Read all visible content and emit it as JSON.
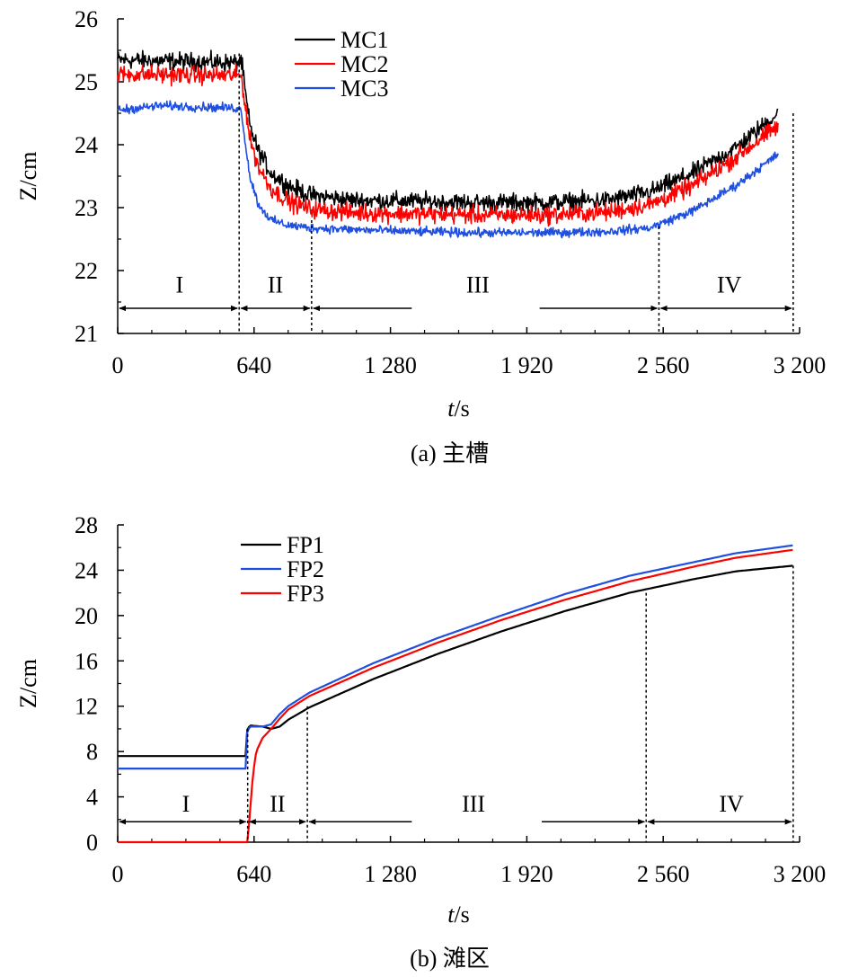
{
  "chart_data": [
    {
      "type": "line",
      "caption": "(a) 主槽",
      "xlabel_italic": "t",
      "xlabel_unit": "/s",
      "ylabel": "Z/cm",
      "xlim": [
        0,
        3200
      ],
      "ylim": [
        21,
        26
      ],
      "x_ticks": [
        0,
        640,
        1280,
        1920,
        2560,
        3200
      ],
      "x_tick_labels": [
        "0",
        "640",
        "1 280",
        "1 920",
        "2 560",
        "3 200"
      ],
      "y_ticks": [
        21,
        22,
        23,
        24,
        25,
        26
      ],
      "y_tick_labels": [
        "21",
        "22",
        "23",
        "24",
        "25",
        "26"
      ],
      "legend_position": "top-center",
      "series": [
        {
          "name": "MC1",
          "color": "#000000",
          "noise": 0.14,
          "points": [
            [
              0,
              25.35
            ],
            [
              560,
              25.3
            ],
            [
              580,
              25.35
            ],
            [
              600,
              24.8
            ],
            [
              620,
              24.3
            ],
            [
              660,
              23.9
            ],
            [
              720,
              23.55
            ],
            [
              800,
              23.35
            ],
            [
              900,
              23.2
            ],
            [
              1100,
              23.12
            ],
            [
              1400,
              23.1
            ],
            [
              1700,
              23.08
            ],
            [
              2000,
              23.08
            ],
            [
              2300,
              23.12
            ],
            [
              2500,
              23.25
            ],
            [
              2700,
              23.55
            ],
            [
              2900,
              23.95
            ],
            [
              3100,
              24.5
            ]
          ]
        },
        {
          "name": "MC2",
          "color": "#ff0000",
          "noise": 0.14,
          "points": [
            [
              0,
              25.12
            ],
            [
              560,
              25.1
            ],
            [
              580,
              25.1
            ],
            [
              600,
              24.6
            ],
            [
              620,
              24.1
            ],
            [
              660,
              23.65
            ],
            [
              720,
              23.3
            ],
            [
              800,
              23.1
            ],
            [
              900,
              22.98
            ],
            [
              1100,
              22.92
            ],
            [
              1400,
              22.9
            ],
            [
              1700,
              22.88
            ],
            [
              2000,
              22.88
            ],
            [
              2300,
              22.93
            ],
            [
              2500,
              23.05
            ],
            [
              2700,
              23.35
            ],
            [
              2900,
              23.8
            ],
            [
              3100,
              24.3
            ]
          ]
        },
        {
          "name": "MC3",
          "color": "#1f4fe0",
          "noise": 0.07,
          "points": [
            [
              0,
              24.55
            ],
            [
              200,
              24.62
            ],
            [
              560,
              24.58
            ],
            [
              580,
              24.55
            ],
            [
              600,
              24.0
            ],
            [
              620,
              23.5
            ],
            [
              660,
              23.05
            ],
            [
              720,
              22.8
            ],
            [
              800,
              22.72
            ],
            [
              900,
              22.68
            ],
            [
              1100,
              22.65
            ],
            [
              1400,
              22.62
            ],
            [
              1700,
              22.6
            ],
            [
              2000,
              22.6
            ],
            [
              2300,
              22.62
            ],
            [
              2500,
              22.68
            ],
            [
              2700,
              22.95
            ],
            [
              2900,
              23.35
            ],
            [
              3100,
              23.85
            ]
          ]
        }
      ],
      "phases": [
        {
          "label": "I",
          "x_from": 0,
          "x_to": 570,
          "label_x": 290
        },
        {
          "label": "II",
          "x_from": 570,
          "x_to": 910,
          "label_x": 740
        },
        {
          "label": "III",
          "x_from": 910,
          "x_to": 2540,
          "label_x": 1690
        },
        {
          "label": "IV",
          "x_from": 2540,
          "x_to": 3170,
          "label_x": 2870
        }
      ],
      "phase_arrow_y": 21.4,
      "phase_label_y": 21.65,
      "dividers": [
        {
          "x": 570,
          "y_top": 25.45
        },
        {
          "x": 910,
          "y_top": 22.8
        },
        {
          "x": 2540,
          "y_top": 22.7
        },
        {
          "x": 3170,
          "y_top": 24.5
        }
      ],
      "iii_gap": [
        1380,
        1980
      ]
    },
    {
      "type": "line",
      "caption": "(b) 滩区",
      "xlabel_italic": "t",
      "xlabel_unit": "/s",
      "ylabel": "Z/cm",
      "xlim": [
        0,
        3200
      ],
      "ylim": [
        0,
        28
      ],
      "x_ticks": [
        0,
        640,
        1280,
        1920,
        2560,
        3200
      ],
      "x_tick_labels": [
        "0",
        "640",
        "1 280",
        "1 920",
        "2 560",
        "3 200"
      ],
      "y_ticks": [
        0,
        4,
        8,
        12,
        16,
        20,
        24,
        28
      ],
      "y_tick_labels": [
        "0",
        "4",
        "8",
        "12",
        "16",
        "20",
        "24",
        "28"
      ],
      "legend_position": "top-left",
      "series": [
        {
          "name": "FP1",
          "color": "#000000",
          "noise": 0,
          "points": [
            [
              0,
              7.6
            ],
            [
              600,
              7.6
            ],
            [
              605,
              9.8
            ],
            [
              620,
              10.3
            ],
            [
              680,
              10.2
            ],
            [
              720,
              10.0
            ],
            [
              760,
              10.2
            ],
            [
              800,
              10.8
            ],
            [
              900,
              11.9
            ],
            [
              1200,
              14.4
            ],
            [
              1500,
              16.6
            ],
            [
              1800,
              18.6
            ],
            [
              2100,
              20.4
            ],
            [
              2400,
              22.0
            ],
            [
              2700,
              23.2
            ],
            [
              2900,
              23.9
            ],
            [
              3170,
              24.4
            ]
          ]
        },
        {
          "name": "FP2",
          "color": "#1f4fe0",
          "noise": 0,
          "points": [
            [
              0,
              6.5
            ],
            [
              600,
              6.5
            ],
            [
              605,
              9.6
            ],
            [
              620,
              10.2
            ],
            [
              680,
              10.2
            ],
            [
              720,
              10.4
            ],
            [
              760,
              11.3
            ],
            [
              800,
              12.0
            ],
            [
              900,
              13.2
            ],
            [
              1200,
              15.8
            ],
            [
              1500,
              18.0
            ],
            [
              1800,
              20.0
            ],
            [
              2100,
              21.9
            ],
            [
              2400,
              23.5
            ],
            [
              2700,
              24.7
            ],
            [
              2900,
              25.5
            ],
            [
              3170,
              26.2
            ]
          ]
        },
        {
          "name": "FP3",
          "color": "#ff0000",
          "noise": 0,
          "points": [
            [
              0,
              0
            ],
            [
              610,
              0
            ],
            [
              620,
              2.5
            ],
            [
              635,
              6.0
            ],
            [
              650,
              8.0
            ],
            [
              680,
              9.2
            ],
            [
              720,
              10.0
            ],
            [
              760,
              10.9
            ],
            [
              800,
              11.7
            ],
            [
              900,
              12.9
            ],
            [
              1200,
              15.4
            ],
            [
              1500,
              17.6
            ],
            [
              1800,
              19.6
            ],
            [
              2100,
              21.4
            ],
            [
              2400,
              23.0
            ],
            [
              2700,
              24.3
            ],
            [
              2900,
              25.1
            ],
            [
              3170,
              25.8
            ]
          ]
        }
      ],
      "phases": [
        {
          "label": "I",
          "x_from": 0,
          "x_to": 610,
          "label_x": 320
        },
        {
          "label": "II",
          "x_from": 610,
          "x_to": 890,
          "label_x": 750
        },
        {
          "label": "III",
          "x_from": 890,
          "x_to": 2480,
          "label_x": 1670
        },
        {
          "label": "IV",
          "x_from": 2480,
          "x_to": 3170,
          "label_x": 2880
        }
      ],
      "phase_arrow_y": 1.8,
      "phase_label_y": 2.7,
      "dividers": [
        {
          "x": 610,
          "y_top": 10.0
        },
        {
          "x": 890,
          "y_top": 12.0
        },
        {
          "x": 2480,
          "y_top": 22.0
        },
        {
          "x": 3170,
          "y_top": 24.4
        }
      ],
      "iii_gap": [
        1380,
        1990
      ]
    }
  ]
}
